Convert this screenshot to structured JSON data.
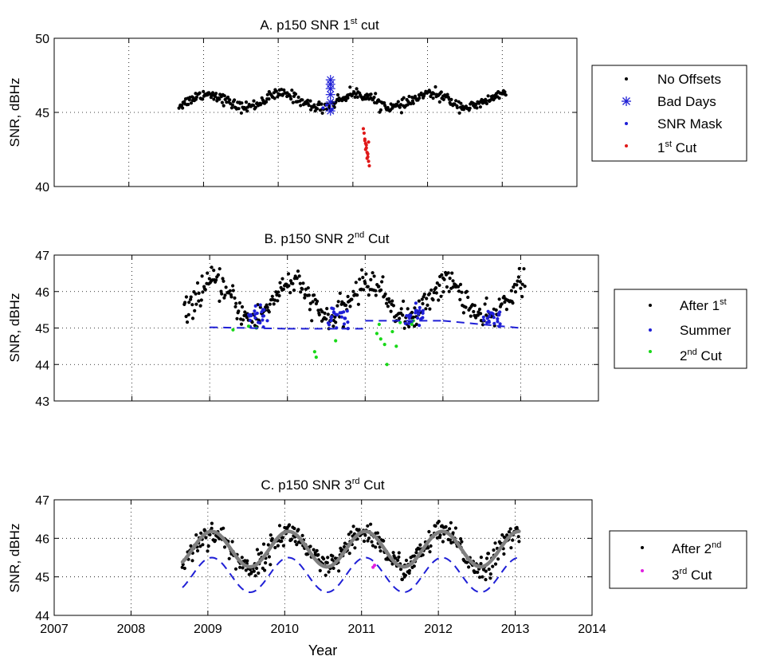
{
  "chart_data": [
    {
      "id": "A",
      "type": "scatter",
      "title": "A. p150 SNR 1",
      "title_sup": "st",
      "title_suffix": " cut",
      "ylabel": "SNR, dBHz",
      "xlim": [
        2007,
        2014
      ],
      "ylim": [
        40,
        50
      ],
      "yticks": [
        40,
        45,
        50
      ],
      "legend": [
        {
          "label": "No Offsets",
          "sup": "",
          "color": "#000000",
          "marker": "dot"
        },
        {
          "label": "Bad Days",
          "sup": "",
          "color": "#1f1fd6",
          "marker": "star"
        },
        {
          "label": "SNR Mask",
          "sup": "",
          "color": "#1f1fd6",
          "marker": "dot"
        },
        {
          "label": "1",
          "sup": "st",
          "suffix": " Cut",
          "color": "#e01818",
          "marker": "dot"
        }
      ],
      "series": [
        {
          "name": "No Offsets",
          "kind": "seasonal",
          "color": "#000000",
          "x_range": [
            2008.67,
            2013.05
          ],
          "mean": 45.8,
          "amp": 0.45,
          "peak": 0.05,
          "trend": 0.0,
          "noise": 0.18,
          "n": 380
        },
        {
          "name": "Bad Days",
          "kind": "points",
          "color": "#1f1fd6",
          "marker": "star",
          "x": [
            2010.7,
            2010.7,
            2010.7,
            2010.7,
            2010.7,
            2010.7
          ],
          "y": [
            45.1,
            45.7,
            46.2,
            46.6,
            46.9,
            47.2
          ]
        },
        {
          "name": "SNR Mask",
          "kind": "points",
          "color": "#1f1fd6",
          "x": [
            2010.6,
            2010.65,
            2010.72
          ],
          "y": [
            45.3,
            45.5,
            45.2
          ]
        },
        {
          "name": "1st Cut",
          "kind": "points",
          "color": "#e01818",
          "x": [
            2011.14,
            2011.15,
            2011.16,
            2011.17,
            2011.18,
            2011.19,
            2011.2,
            2011.21,
            2011.22,
            2011.16,
            2011.18,
            2011.2,
            2011.19,
            2011.21,
            2011.17
          ],
          "y": [
            43.9,
            43.6,
            43.2,
            42.9,
            42.6,
            42.3,
            42.0,
            41.7,
            41.4,
            43.1,
            42.8,
            42.2,
            41.9,
            43.0,
            42.5
          ]
        }
      ]
    },
    {
      "id": "B",
      "type": "scatter",
      "title": "B. p150 SNR 2",
      "title_sup": "nd",
      "title_suffix": " Cut",
      "ylabel": "SNR, dBHz",
      "xlim": [
        2007,
        2014
      ],
      "ylim": [
        43,
        47
      ],
      "yticks": [
        43,
        44,
        45,
        46,
        47
      ],
      "legend": [
        {
          "label": "After 1",
          "sup": "st",
          "suffix": "",
          "color": "#000000",
          "marker": "dot"
        },
        {
          "label": "Summer",
          "sup": "",
          "color": "#1f1fd6",
          "marker": "dot"
        },
        {
          "label": "2",
          "sup": "nd",
          "suffix": " Cut",
          "color": "#18d818",
          "marker": "dot"
        }
      ],
      "series": [
        {
          "name": "After 1st",
          "kind": "seasonal",
          "color": "#000000",
          "x_range": [
            2008.67,
            2013.05
          ],
          "mean": 45.75,
          "amp": 0.5,
          "peak": 0.05,
          "trend": 0.0,
          "noise": 0.18,
          "n": 380
        },
        {
          "name": "Summer",
          "kind": "summer",
          "color": "#1f1fd6",
          "windows": [
            [
              2009.5,
              2009.75
            ],
            [
              2010.5,
              2010.78
            ],
            [
              2011.5,
              2011.75
            ],
            [
              2012.5,
              2012.75
            ]
          ],
          "mean": 45.3,
          "noise": 0.15,
          "n_per_window": 22
        },
        {
          "name": "2nd Cut",
          "kind": "points",
          "color": "#18d818",
          "x": [
            2009.3,
            2009.5,
            2009.6,
            2010.35,
            2010.37,
            2010.62,
            2011.15,
            2011.18,
            2011.2,
            2011.25,
            2011.28,
            2011.35,
            2011.4,
            2011.45,
            2011.6,
            2011.62
          ],
          "y": [
            44.95,
            45.05,
            45.0,
            44.35,
            44.2,
            44.65,
            44.85,
            45.1,
            44.7,
            44.55,
            44.0,
            44.9,
            44.5,
            45.15,
            45.1,
            45.2
          ]
        },
        {
          "name": "threshold",
          "kind": "dashed",
          "color": "#1f1fd6",
          "x": [
            2009.0,
            2010.0,
            2011.0,
            2011.0,
            2012.0,
            2013.0
          ],
          "y": [
            45.02,
            44.98,
            44.98,
            45.2,
            45.2,
            45.0
          ]
        }
      ]
    },
    {
      "id": "C",
      "type": "scatter",
      "title": "C. p150 SNR 3",
      "title_sup": "rd",
      "title_suffix": " Cut",
      "ylabel": "SNR, dBHz",
      "xlabel": "Year",
      "xlim": [
        2007,
        2014
      ],
      "ylim": [
        44,
        47
      ],
      "yticks": [
        44,
        45,
        46,
        47
      ],
      "xticks": [
        2007,
        2008,
        2009,
        2010,
        2011,
        2012,
        2013,
        2014
      ],
      "legend": [
        {
          "label": "After 2",
          "sup": "nd",
          "suffix": "",
          "color": "#000000",
          "marker": "dot"
        },
        {
          "label": "3",
          "sup": "rd",
          "suffix": " Cut",
          "color": "#e020e0",
          "marker": "dot"
        }
      ],
      "series": [
        {
          "name": "After 2nd",
          "kind": "seasonal",
          "color": "#000000",
          "x_range": [
            2008.67,
            2013.05
          ],
          "mean": 45.7,
          "amp": 0.45,
          "peak": 0.05,
          "trend": 0.0,
          "noise": 0.16,
          "n": 420
        },
        {
          "name": "fit",
          "kind": "curve",
          "color": "#808080",
          "x_range": [
            2008.67,
            2013.05
          ],
          "mean": 45.72,
          "amp": 0.46,
          "peak": 0.05
        },
        {
          "name": "lower bound",
          "kind": "curve_dashed",
          "color": "#1f1fd6",
          "x_range": [
            2008.67,
            2013.05
          ],
          "mean": 45.05,
          "amp": 0.45,
          "peak": 0.05
        },
        {
          "name": "3rd Cut",
          "kind": "points",
          "color": "#e020e0",
          "x": [
            2011.15,
            2011.17
          ],
          "y": [
            45.25,
            45.3
          ]
        }
      ]
    }
  ]
}
